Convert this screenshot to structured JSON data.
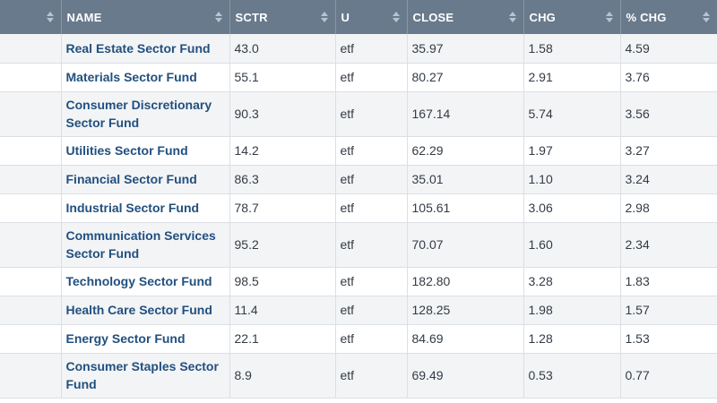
{
  "headers": {
    "select": "",
    "name": "NAME",
    "sctr": "SCTR",
    "u": "U",
    "close": "CLOSE",
    "chg": "CHG",
    "pct_chg": "% CHG"
  },
  "rows": [
    {
      "name": "Real Estate Sector Fund",
      "sctr": "43.0",
      "u": "etf",
      "close": "35.97",
      "chg": "1.58",
      "pct_chg": "4.59"
    },
    {
      "name": "Materials Sector Fund",
      "sctr": "55.1",
      "u": "etf",
      "close": "80.27",
      "chg": "2.91",
      "pct_chg": "3.76"
    },
    {
      "name": "Consumer Discretionary Sector Fund",
      "sctr": "90.3",
      "u": "etf",
      "close": "167.14",
      "chg": "5.74",
      "pct_chg": "3.56"
    },
    {
      "name": "Utilities Sector Fund",
      "sctr": "14.2",
      "u": "etf",
      "close": "62.29",
      "chg": "1.97",
      "pct_chg": "3.27"
    },
    {
      "name": "Financial Sector Fund",
      "sctr": "86.3",
      "u": "etf",
      "close": "35.01",
      "chg": "1.10",
      "pct_chg": "3.24"
    },
    {
      "name": "Industrial Sector Fund",
      "sctr": "78.7",
      "u": "etf",
      "close": "105.61",
      "chg": "3.06",
      "pct_chg": "2.98"
    },
    {
      "name": "Communication Services Sector Fund",
      "sctr": "95.2",
      "u": "etf",
      "close": "70.07",
      "chg": "1.60",
      "pct_chg": "2.34"
    },
    {
      "name": "Technology Sector Fund",
      "sctr": "98.5",
      "u": "etf",
      "close": "182.80",
      "chg": "3.28",
      "pct_chg": "1.83"
    },
    {
      "name": "Health Care Sector Fund",
      "sctr": "11.4",
      "u": "etf",
      "close": "128.25",
      "chg": "1.98",
      "pct_chg": "1.57"
    },
    {
      "name": "Energy Sector Fund",
      "sctr": "22.1",
      "u": "etf",
      "close": "84.69",
      "chg": "1.28",
      "pct_chg": "1.53"
    },
    {
      "name": "Consumer Staples Sector Fund",
      "sctr": "8.9",
      "u": "etf",
      "close": "69.49",
      "chg": "0.53",
      "pct_chg": "0.77"
    }
  ],
  "icons": {
    "sort": "sort-arrows-icon"
  },
  "colors": {
    "header_bg": "#6a7a8d",
    "link": "#21507f",
    "row_alt": "#f3f4f6"
  }
}
